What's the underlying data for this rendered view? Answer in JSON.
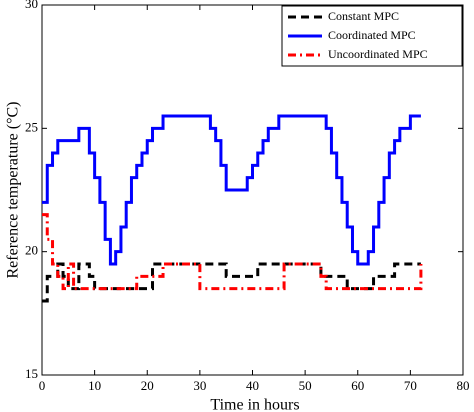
{
  "chart_data": {
    "type": "line",
    "step": true,
    "xlabel": "Time in hours",
    "ylabel": "Reference temperature (°C)",
    "xlim": [
      0,
      80
    ],
    "xticks": [
      0,
      10,
      20,
      30,
      40,
      50,
      60,
      70,
      80
    ],
    "ylim": [
      15,
      30
    ],
    "yticks": [
      15,
      20,
      25,
      30
    ],
    "legend": "upper right",
    "x": [
      0,
      1,
      2,
      3,
      4,
      5,
      6,
      7,
      8,
      9,
      10,
      11,
      12,
      13,
      14,
      15,
      16,
      17,
      18,
      19,
      20,
      21,
      22,
      23,
      24,
      25,
      26,
      27,
      28,
      29,
      30,
      31,
      32,
      33,
      34,
      35,
      36,
      37,
      38,
      39,
      40,
      41,
      42,
      43,
      44,
      45,
      46,
      47,
      48,
      49,
      50,
      51,
      52,
      53,
      54,
      55,
      56,
      57,
      58,
      59,
      60,
      61,
      62,
      63,
      64,
      65,
      66,
      67,
      68,
      69,
      70,
      71,
      72
    ],
    "series": [
      {
        "name": "Constant MPC",
        "color": "#000000",
        "dash": "dashed",
        "values": [
          18,
          19,
          19,
          19.5,
          19,
          18.5,
          18.5,
          19.5,
          19.5,
          19,
          18.5,
          18.5,
          18.5,
          18.5,
          18.5,
          18.5,
          18.5,
          18.5,
          18.5,
          18.5,
          18.5,
          19.5,
          19.5,
          19.5,
          19.5,
          19.5,
          19.5,
          19.5,
          19.5,
          19.5,
          19.5,
          19.5,
          19.5,
          19.5,
          19.5,
          19,
          19,
          19,
          19,
          19,
          19,
          19.5,
          19.5,
          19.5,
          19.5,
          19.5,
          19.5,
          19.5,
          19.5,
          19.5,
          19.5,
          19.5,
          19.5,
          19,
          19,
          19,
          19,
          19,
          18.5,
          18.5,
          18.5,
          18.5,
          18.5,
          19,
          19,
          19,
          19,
          19.5,
          19.5,
          19.5,
          19.5,
          19.5,
          19.5
        ]
      },
      {
        "name": "Coordinated MPC",
        "color": "#0000ff",
        "dash": "solid",
        "values": [
          22,
          23.5,
          24,
          24.5,
          24.5,
          24.5,
          24.5,
          25,
          25,
          24,
          23,
          22,
          20.5,
          19.5,
          20,
          21,
          22,
          23,
          23.5,
          24,
          24.5,
          25,
          25,
          25.5,
          25.5,
          25.5,
          25.5,
          25.5,
          25.5,
          25.5,
          25.5,
          25.5,
          25,
          24.5,
          23.5,
          22.5,
          22.5,
          22.5,
          22.5,
          23,
          23.5,
          24,
          24.5,
          25,
          25,
          25.5,
          25.5,
          25.5,
          25.5,
          25.5,
          25.5,
          25.5,
          25.5,
          25.5,
          25,
          24,
          23,
          22,
          21,
          20,
          19.5,
          19.5,
          20,
          21,
          22,
          23,
          24,
          24.5,
          25,
          25,
          25.5,
          25.5,
          25.5
        ]
      },
      {
        "name": "Uncoordinated MPC",
        "color": "#ff0000",
        "dash": "dashdot",
        "values": [
          21.5,
          20.5,
          19.5,
          19,
          18.5,
          19.5,
          18.5,
          18.5,
          18.5,
          18.5,
          18.5,
          18.5,
          18.5,
          18.5,
          18.5,
          18.5,
          18.5,
          18.5,
          19,
          19,
          19,
          19,
          19,
          19.5,
          19.5,
          19.5,
          19.5,
          19.5,
          19.5,
          19.5,
          18.5,
          18.5,
          18.5,
          18.5,
          18.5,
          18.5,
          18.5,
          18.5,
          18.5,
          18.5,
          18.5,
          18.5,
          18.5,
          18.5,
          18.5,
          18.5,
          19.5,
          19.5,
          19.5,
          19.5,
          19.5,
          19.5,
          19.5,
          19,
          18.5,
          18.5,
          18.5,
          18.5,
          18.5,
          18.5,
          18.5,
          18.5,
          18.5,
          18.5,
          18.5,
          18.5,
          18.5,
          18.5,
          18.5,
          18.5,
          18.5,
          18.5,
          19.5
        ]
      }
    ]
  }
}
